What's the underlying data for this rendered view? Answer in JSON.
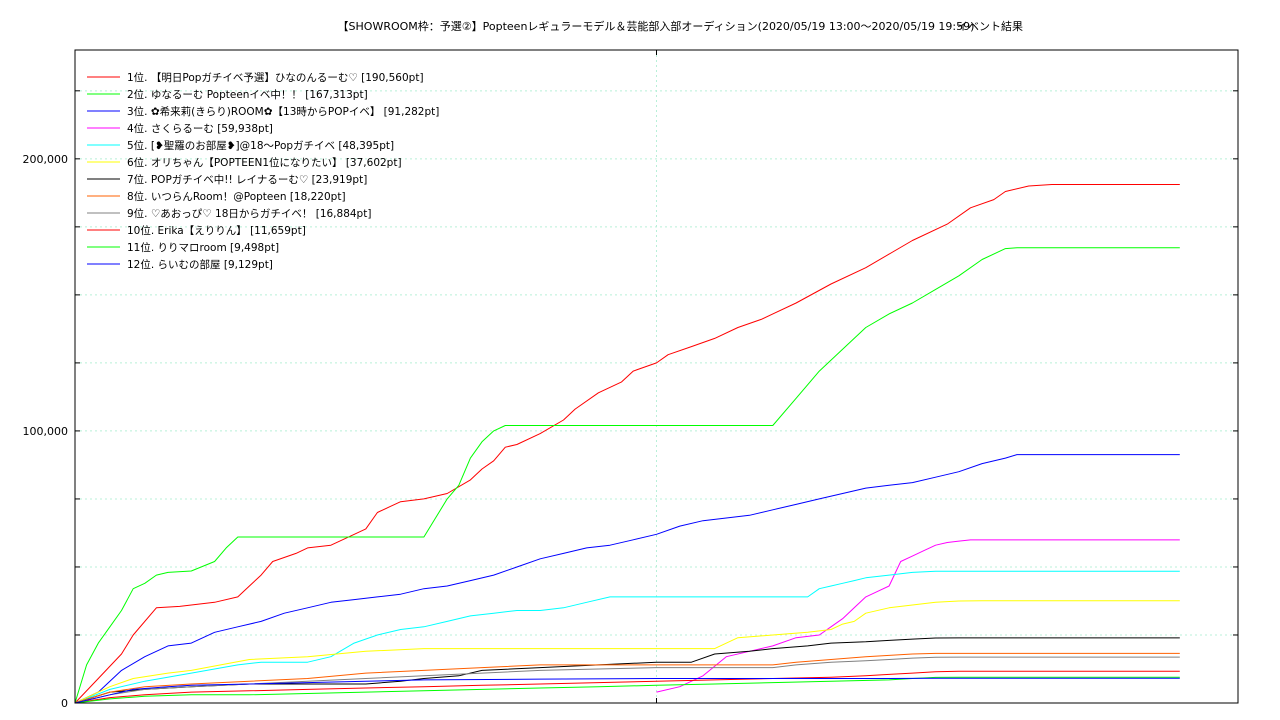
{
  "chart_data": {
    "type": "line",
    "title": "【SHOWROOM枠：予選②】Popteenレギュラーモデル＆芸能部入部オーディション(2020/05/19 13:00〜2020/05/19 19:59)",
    "subtitle": "イベント結果",
    "xlabel": "",
    "ylabel": "",
    "ylim": [
      0,
      240000
    ],
    "yticks": [
      {
        "value": 0,
        "label": "0"
      },
      {
        "value": 100000,
        "label": "100,000"
      },
      {
        "value": 200000,
        "label": "200,000"
      }
    ],
    "xlim": [
      0,
      100
    ],
    "grid": true,
    "legend_position": "top-left",
    "series": [
      {
        "name": "1位. 【明日Popガチイベ予選】ひなのんるーむ♡ [190,560pt]",
        "color": "#ff0000",
        "x": [
          0,
          2,
          4,
          5,
          7,
          9,
          10,
          12,
          14,
          15,
          16,
          17,
          19,
          20,
          22,
          23,
          25,
          26,
          27,
          28,
          30,
          32,
          34,
          35,
          36,
          37,
          38,
          40,
          42,
          43,
          45,
          47,
          48,
          50,
          51,
          53,
          55,
          57,
          59,
          60,
          62,
          65,
          68,
          70,
          72,
          75,
          77,
          79,
          80,
          82,
          84,
          86,
          88,
          90,
          91,
          91.5,
          95
        ],
        "values": [
          0,
          9000,
          18000,
          25000,
          35000,
          35500,
          36000,
          37000,
          39000,
          43000,
          47000,
          52000,
          55000,
          57000,
          58000,
          60000,
          64000,
          70000,
          72000,
          74000,
          75000,
          77000,
          82000,
          86000,
          89000,
          94000,
          95000,
          99000,
          104000,
          108000,
          114000,
          118000,
          122000,
          125000,
          128000,
          131000,
          134000,
          138000,
          141000,
          143000,
          147000,
          154000,
          160000,
          165000,
          170000,
          176000,
          182000,
          185000,
          188000,
          190000,
          190560,
          190560,
          190560,
          190560,
          190560,
          190560,
          190560
        ]
      },
      {
        "name": "2位. ゆなるーむ Popteenイベ中！！ [167,313pt]",
        "color": "#00ff00",
        "x": [
          0,
          1,
          2,
          3,
          4,
          5,
          6,
          7,
          8,
          10,
          12,
          13,
          14,
          15,
          30,
          32,
          33,
          34,
          35,
          36,
          37,
          39,
          41,
          60,
          62,
          64,
          66,
          68,
          70,
          72,
          74,
          76,
          78,
          80,
          81,
          82,
          95
        ],
        "values": [
          0,
          14000,
          22000,
          28000,
          34000,
          42000,
          44000,
          47000,
          48000,
          48500,
          52000,
          57000,
          61000,
          61000,
          61000,
          75000,
          80000,
          90000,
          96000,
          100000,
          102000,
          102000,
          102000,
          102000,
          112000,
          122000,
          130000,
          138000,
          143000,
          147000,
          152000,
          157000,
          163000,
          167000,
          167313,
          167313,
          167313
        ]
      },
      {
        "name": "3位. ✿希来莉(きらり)ROOM✿【13時からPOPイベ】 [91,282pt]",
        "color": "#0000ff",
        "x": [
          0,
          2,
          3,
          4,
          6,
          8,
          10,
          12,
          14,
          16,
          18,
          20,
          22,
          24,
          26,
          28,
          30,
          32,
          34,
          36,
          38,
          40,
          42,
          44,
          46,
          48,
          50,
          52,
          54,
          56,
          58,
          60,
          62,
          64,
          66,
          68,
          70,
          72,
          74,
          76,
          78,
          80,
          81,
          95
        ],
        "values": [
          0,
          4000,
          8000,
          12000,
          17000,
          21000,
          22000,
          26000,
          28000,
          30000,
          33000,
          35000,
          37000,
          38000,
          39000,
          40000,
          42000,
          43000,
          45000,
          47000,
          50000,
          53000,
          55000,
          57000,
          58000,
          60000,
          62000,
          65000,
          67000,
          68000,
          69000,
          71000,
          73000,
          75000,
          77000,
          79000,
          80000,
          81000,
          83000,
          85000,
          88000,
          90000,
          91282,
          91282
        ]
      },
      {
        "name": "4位. さくらるーむ [59,938pt]",
        "color": "#ff00ff",
        "x": [
          50,
          52,
          54,
          56,
          58,
          60,
          62,
          64,
          65,
          66,
          67,
          68,
          69,
          70,
          71,
          72,
          73,
          74,
          75,
          76,
          77,
          78,
          95
        ],
        "values": [
          4000,
          6000,
          10000,
          17000,
          19000,
          21000,
          24000,
          25000,
          28000,
          31000,
          35000,
          39000,
          41000,
          43000,
          52000,
          54000,
          56000,
          58000,
          59000,
          59500,
          59938,
          59938,
          59938
        ]
      },
      {
        "name": "5位. [❥聖羅のお部屋❥]@18〜Popガチイベ [48,395pt]",
        "color": "#00ffff",
        "x": [
          0,
          3,
          6,
          10,
          14,
          16,
          20,
          22,
          24,
          26,
          28,
          30,
          32,
          34,
          36,
          38,
          40,
          42,
          44,
          46,
          48,
          50,
          60,
          63,
          64,
          65,
          66,
          67,
          68,
          70,
          72,
          74,
          76,
          78,
          95
        ],
        "values": [
          0,
          5000,
          8000,
          11000,
          14000,
          15000,
          15000,
          17000,
          22000,
          25000,
          27000,
          28000,
          30000,
          32000,
          33000,
          34000,
          34000,
          35000,
          37000,
          39000,
          39000,
          39000,
          39000,
          39000,
          42000,
          43000,
          44000,
          45000,
          46000,
          47000,
          48000,
          48395,
          48395,
          48395,
          48395
        ]
      },
      {
        "name": "6位. オリちゃん【POPTEEN1位になりたい】 [37,602pt]",
        "color": "#ffff00",
        "x": [
          0,
          3,
          5,
          8,
          10,
          15,
          20,
          25,
          30,
          35,
          40,
          45,
          50,
          52,
          55,
          57,
          60,
          63,
          65,
          66,
          67,
          68,
          70,
          72,
          74,
          76,
          78,
          95
        ],
        "values": [
          0,
          6000,
          9000,
          11000,
          12000,
          16000,
          17000,
          19000,
          20000,
          20000,
          20000,
          20000,
          20000,
          20000,
          20000,
          24000,
          25000,
          26000,
          27000,
          29000,
          30000,
          33000,
          35000,
          36000,
          37000,
          37500,
          37602,
          37602
        ]
      },
      {
        "name": "7位. POPガチイベ中!! レイナるーむ♡ [23,919pt]",
        "color": "#000000",
        "x": [
          0,
          3,
          6,
          10,
          15,
          20,
          25,
          28,
          30,
          33,
          35,
          40,
          45,
          50,
          53,
          55,
          58,
          60,
          63,
          65,
          68,
          70,
          72,
          74,
          76,
          95
        ],
        "values": [
          0,
          4000,
          5000,
          6000,
          7000,
          7000,
          7000,
          8000,
          9000,
          10000,
          12000,
          13000,
          14000,
          15000,
          15000,
          18000,
          19000,
          20000,
          21000,
          22000,
          22500,
          23000,
          23500,
          23900,
          23919,
          23919
        ]
      },
      {
        "name": "8位. いつらんRoom！@Popteen [18,220pt]",
        "color": "#ff6000",
        "x": [
          0,
          3,
          6,
          10,
          15,
          20,
          25,
          30,
          35,
          40,
          45,
          50,
          55,
          60,
          62,
          65,
          68,
          70,
          72,
          74,
          76,
          95
        ],
        "values": [
          0,
          4000,
          6000,
          7000,
          8000,
          9000,
          11000,
          12000,
          13000,
          14000,
          14000,
          14000,
          14000,
          14000,
          15000,
          16000,
          17000,
          17500,
          18000,
          18220,
          18220,
          18220
        ]
      },
      {
        "name": "9位. ♡あおっぴ♡ 18日からガチイベ！ [16,884pt]",
        "color": "#808080",
        "x": [
          0,
          3,
          6,
          10,
          15,
          20,
          25,
          30,
          35,
          40,
          45,
          50,
          55,
          60,
          62,
          65,
          68,
          70,
          72,
          74,
          76,
          95
        ],
        "values": [
          0,
          3000,
          5000,
          6000,
          7000,
          8000,
          9000,
          10000,
          11000,
          12000,
          12500,
          13000,
          13000,
          13000,
          14000,
          15000,
          15500,
          16000,
          16500,
          16800,
          16884,
          16884
        ]
      },
      {
        "name": "10位. Erika【えりりん】 [11,659pt]",
        "color": "#ff0000",
        "x": [
          0,
          3,
          6,
          10,
          15,
          20,
          25,
          30,
          35,
          40,
          45,
          50,
          55,
          60,
          65,
          68,
          70,
          72,
          74,
          76,
          95
        ],
        "values": [
          0,
          2000,
          3000,
          4000,
          4500,
          5000,
          5500,
          6000,
          6500,
          7000,
          7500,
          8000,
          8500,
          9000,
          9500,
          10000,
          10500,
          11000,
          11500,
          11659,
          11659
        ]
      },
      {
        "name": "11位. りりマロroom [9,498pt]",
        "color": "#00ff00",
        "x": [
          0,
          3,
          6,
          10,
          15,
          20,
          25,
          30,
          35,
          40,
          45,
          50,
          55,
          60,
          65,
          70,
          72,
          74,
          76,
          95
        ],
        "values": [
          0,
          1500,
          2500,
          3000,
          3000,
          3500,
          4000,
          4500,
          5000,
          5500,
          6000,
          6500,
          7000,
          7500,
          8000,
          8500,
          9000,
          9400,
          9498,
          9498
        ]
      },
      {
        "name": "12位. らいむの部屋 [9,129pt]",
        "color": "#0000ff",
        "x": [
          0,
          3,
          5,
          8,
          10,
          15,
          20,
          25,
          30,
          40,
          50,
          60,
          70,
          74,
          76,
          95
        ],
        "values": [
          0,
          3000,
          5000,
          6000,
          6500,
          7000,
          7500,
          8000,
          8500,
          8800,
          9000,
          9000,
          9000,
          9100,
          9129,
          9129
        ]
      }
    ]
  }
}
